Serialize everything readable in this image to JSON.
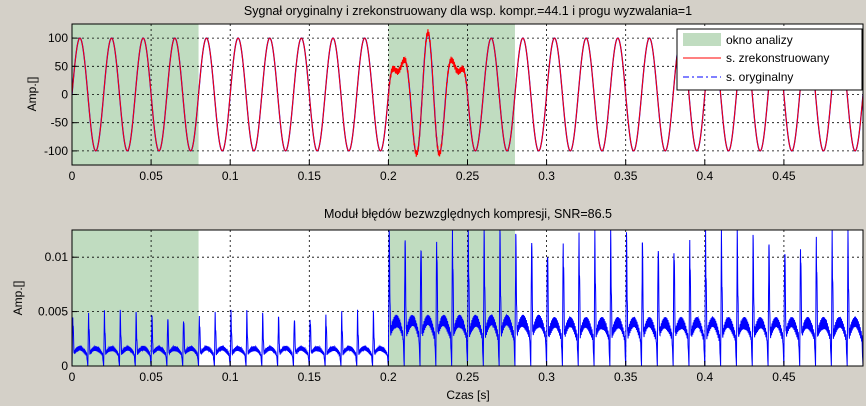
{
  "chart_data": [
    {
      "type": "line",
      "title": "Sygnał oryginalny i zrekonstruowany dla wsp. kompr.=44.1 i progu wyzwalania=1",
      "xlabel": "",
      "ylabel": "Amp.[]",
      "xlim": [
        0,
        0.5
      ],
      "ylim": [
        -125,
        125
      ],
      "xticks": [
        0,
        0.05,
        0.1,
        0.15,
        0.2,
        0.25,
        0.3,
        0.35,
        0.4,
        0.45
      ],
      "xtick_labels": [
        "0",
        "0.05",
        "0.1",
        "0.15",
        "0.2",
        "0.25",
        "0.3",
        "0.35",
        "0.4",
        "0.45"
      ],
      "yticks": [
        -100,
        -50,
        0,
        50,
        100
      ],
      "ytick_labels": [
        "-100",
        "-50",
        "0",
        "50",
        "100"
      ],
      "grid": true,
      "legend_position": "top-right",
      "analysis_windows": [
        [
          0,
          0.08
        ],
        [
          0.2,
          0.28
        ]
      ],
      "signal": {
        "frequency_hz": 50,
        "amplitude": 100,
        "burst": {
          "start": 0.2,
          "end": 0.25,
          "peak_amplitude": 110,
          "frequency_hz": 70
        }
      },
      "series": [
        {
          "name": "okno analizy",
          "style": "patch",
          "color": "#c0dcc0"
        },
        {
          "name": "s. zrekonstruowany",
          "style": "solid",
          "color": "#ff0000"
        },
        {
          "name": "s. oryginalny",
          "style": "dash-dot",
          "color": "#0000ff"
        }
      ]
    },
    {
      "type": "line",
      "title": "Moduł błędów bezwzględnych kompresji, SNR=86.5",
      "xlabel": "Czas [s]",
      "ylabel": "Amp.[]",
      "xlim": [
        0,
        0.5
      ],
      "ylim": [
        0,
        0.0125
      ],
      "xticks": [
        0,
        0.05,
        0.1,
        0.15,
        0.2,
        0.25,
        0.3,
        0.35,
        0.4,
        0.45
      ],
      "xtick_labels": [
        "0",
        "0.05",
        "0.1",
        "0.15",
        "0.2",
        "0.25",
        "0.3",
        "0.35",
        "0.4",
        "0.45"
      ],
      "yticks": [
        0,
        0.005,
        0.01
      ],
      "ytick_labels": [
        "0",
        "0.005",
        "0.01"
      ],
      "grid": true,
      "analysis_windows": [
        [
          0,
          0.08
        ],
        [
          0.2,
          0.28
        ]
      ],
      "series": [
        {
          "name": "",
          "color": "#0000ff",
          "approx_peak_error_by_segment": [
            {
              "x_range": [
                0,
                0.2
              ],
              "peak": 0.0045
            },
            {
              "x_range": [
                0.2,
                0.3
              ],
              "peak": 0.0117
            },
            {
              "x_range": [
                0.3,
                0.5
              ],
              "peak": 0.0112
            }
          ]
        }
      ]
    }
  ]
}
